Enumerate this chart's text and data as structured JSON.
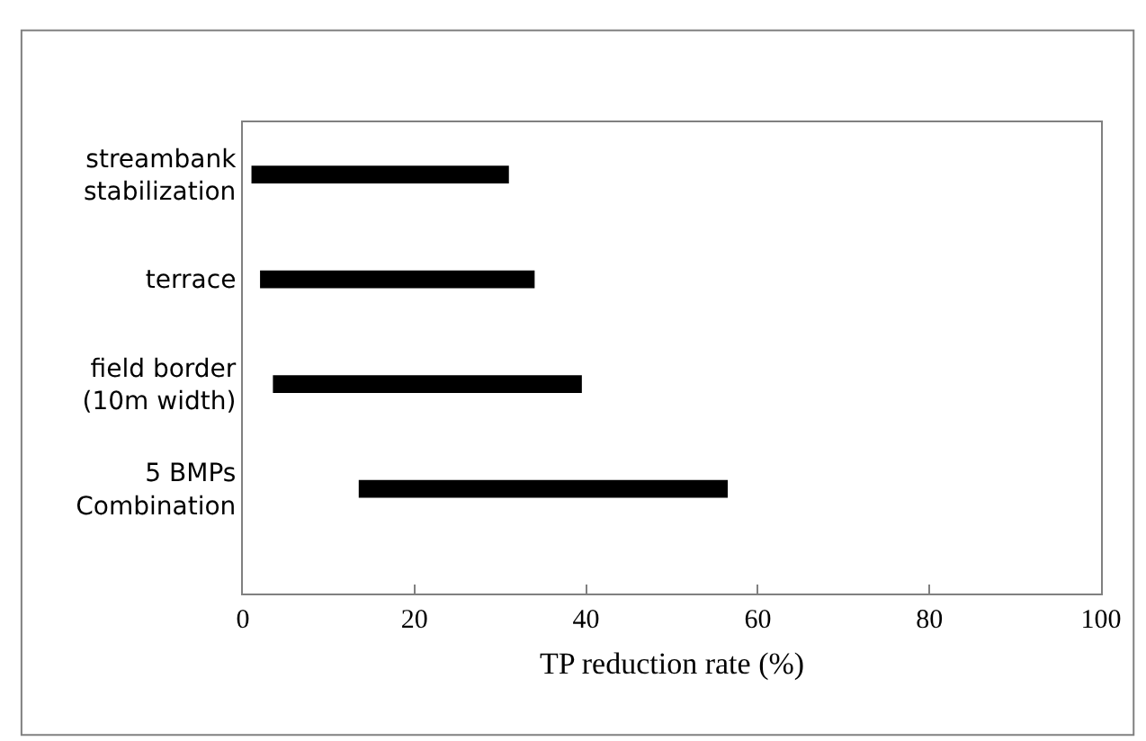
{
  "chart_data": {
    "type": "bar",
    "orientation": "horizontal",
    "xlabel": "TP reduction rate (%)",
    "categories": [
      "streambank\nstabilization",
      "terrace",
      "field border\n(10m width)",
      "5 BMPs\nCombination"
    ],
    "base": [
      1,
      2,
      3.5,
      13.5
    ],
    "values": [
      30,
      32,
      36,
      43
    ],
    "color": "#000000",
    "xlim": [
      0,
      100
    ],
    "xticks": [
      0,
      20,
      40,
      60,
      80,
      100
    ]
  }
}
